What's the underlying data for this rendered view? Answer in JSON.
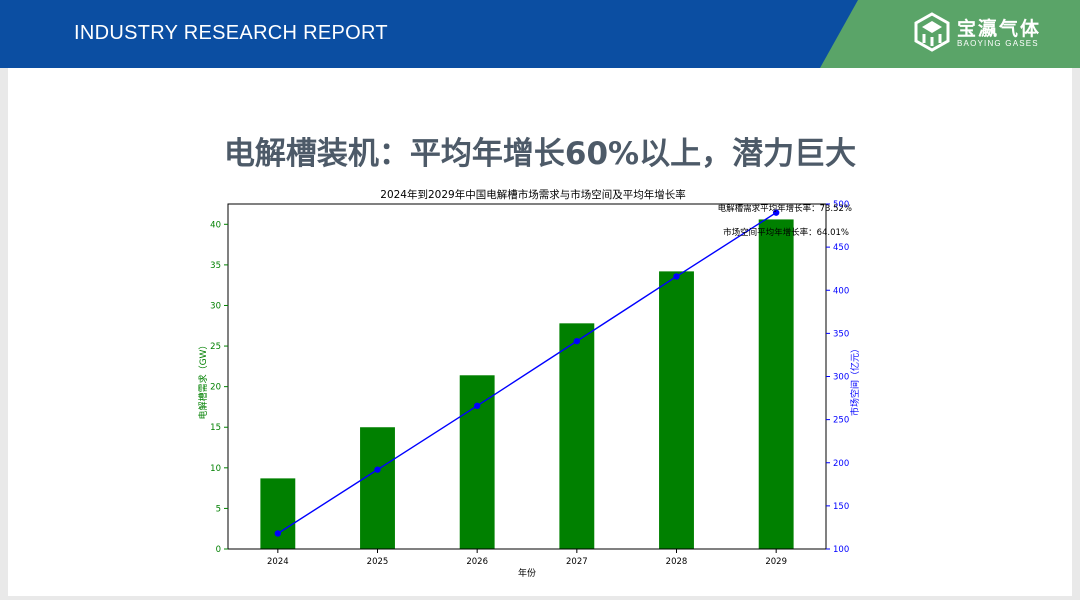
{
  "header": {
    "title": "INDUSTRY RESEARCH REPORT",
    "brand_name": "宝瀛气体",
    "brand_sub": "BAOYING GASES"
  },
  "slide": {
    "title": "电解槽装机：平均年增长60%以上，潜力巨大"
  },
  "colors": {
    "header_blue": "#0b4ea2",
    "brand_green": "#5aa468",
    "bar_green": "#008000",
    "line_blue": "#0000ff"
  },
  "chart_data": {
    "type": "bar",
    "title": "2024年到2029年中国电解槽市场需求与市场空间及平均年增长率",
    "xlabel": "年份",
    "ylabel": "电解槽需求（GW）",
    "y2label": "市场空间（亿元）",
    "categories": [
      "2024",
      "2025",
      "2026",
      "2027",
      "2028",
      "2029"
    ],
    "series": [
      {
        "type": "bar",
        "axis": "left",
        "values": [
          8.7,
          15.0,
          21.4,
          27.8,
          34.2,
          40.6
        ]
      },
      {
        "type": "line",
        "axis": "right",
        "values": [
          118,
          192,
          266,
          341,
          416,
          490
        ]
      }
    ],
    "ylim": [
      0,
      42.5
    ],
    "y2lim": [
      100,
      500
    ],
    "yticks": [
      0,
      5,
      10,
      15,
      20,
      25,
      30,
      35,
      40
    ],
    "y2ticks": [
      100,
      150,
      200,
      250,
      300,
      350,
      400,
      450,
      500
    ],
    "annotations": [
      "电解槽需求平均年增长率：73.52%",
      "市场空间平均年增长率：64.01%"
    ],
    "grid": false
  }
}
